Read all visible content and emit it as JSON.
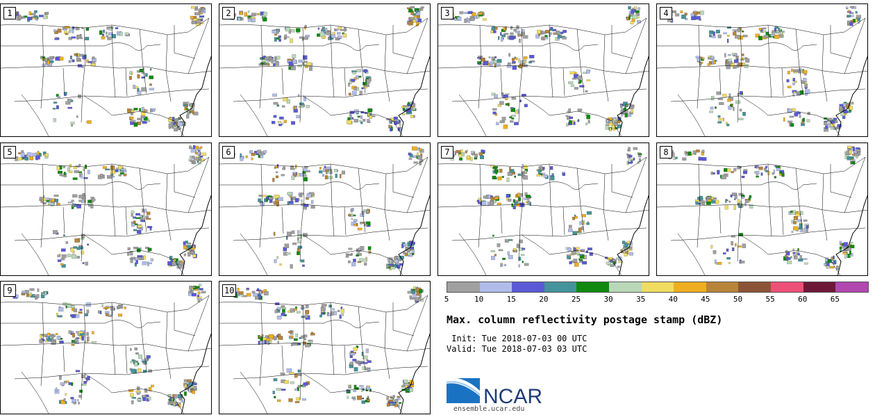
{
  "panels": [
    {
      "label": "1"
    },
    {
      "label": "2"
    },
    {
      "label": "3"
    },
    {
      "label": "4"
    },
    {
      "label": "5"
    },
    {
      "label": "6"
    },
    {
      "label": "7"
    },
    {
      "label": "8"
    },
    {
      "label": "9"
    },
    {
      "label": "10"
    }
  ],
  "colorbar": {
    "colors": [
      "#a0a0a0",
      "#b0bce8",
      "#5a5ad6",
      "#44939a",
      "#0f8a0f",
      "#b8d8b8",
      "#f0dc60",
      "#eeae20",
      "#b8843a",
      "#8c5436",
      "#ee5078",
      "#6e1838",
      "#b048b0"
    ],
    "ticks": [
      "5",
      "10",
      "15",
      "20",
      "25",
      "30",
      "35",
      "40",
      "45",
      "50",
      "55",
      "60",
      "65"
    ]
  },
  "title": "Max. column reflectivity postage stamp (dBZ)",
  "init_time": " Init: Tue 2018-07-03 00 UTC",
  "valid_time": "Valid: Tue 2018-07-03 03 UTC",
  "logo": {
    "text": "NCAR",
    "url": "ensemble.ucar.edu",
    "color": "#1e3c78"
  }
}
